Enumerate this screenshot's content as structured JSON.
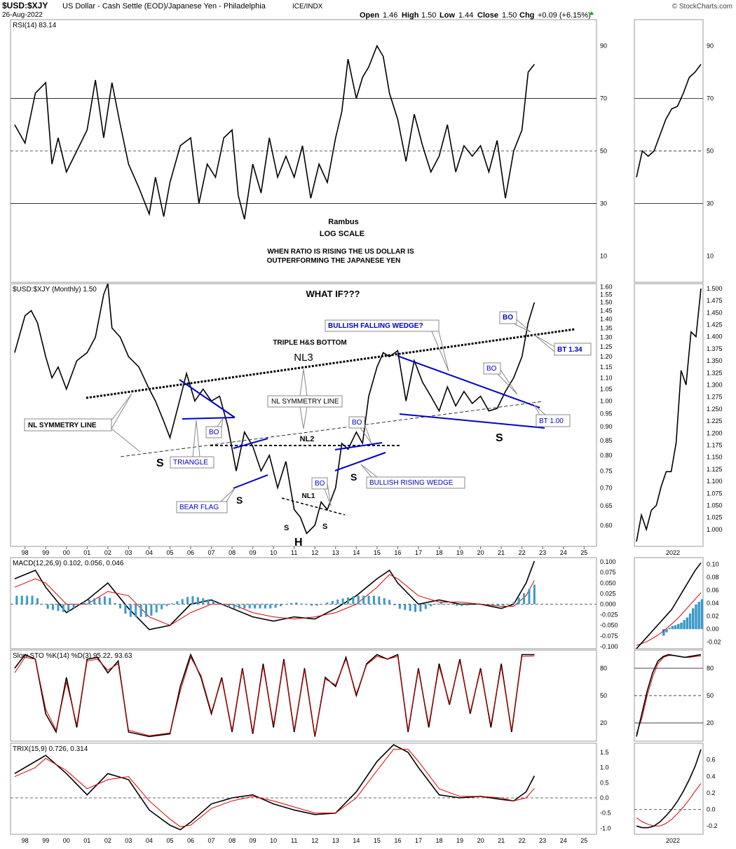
{
  "header": {
    "symbol": "$USD:$XJY",
    "description": "US Dollar - Cash Settle (EOD)/Japanese Yen - Philadelphia",
    "exchange": "ICE/INDX",
    "date": "26-Aug-2022",
    "watermark": "© StockCharts.com",
    "ohlc": {
      "open_label": "Open",
      "open": "1.46",
      "high_label": "High",
      "high": "1.50",
      "low_label": "Low",
      "low": "1.44",
      "close_label": "Close",
      "close": "1.50",
      "chg_label": "Chg",
      "chg": "+0.09 (+6.15%)"
    }
  },
  "colors": {
    "price_line": "#000000",
    "annotation_blue": "#0000cc",
    "rsi_fill_over": "#5a7a52",
    "rsi_fill_under": "#8a5050",
    "macd_signal": "#dd0000",
    "histogram": "#3a9ac8",
    "grid": "#bbbbbb"
  },
  "annotations": {
    "rambus": "Rambus",
    "log_scale": "LOG SCALE",
    "ratio_note_1": "WHEN RATIO IS RISING THE US DOLLAR IS",
    "ratio_note_2": "OUTPERFORMING THE JAPANESE YEN",
    "what_if": "WHAT IF???",
    "triple_hs": "TRIPLE H&S BOTTOM",
    "nl3": "NL3",
    "nl2": "NL2",
    "nl1": "NL1",
    "nl_symmetry_left": "NL SYMMETRY LINE",
    "nl_symmetry_mid": "NL SYMMETRY LINE",
    "bullish_falling_wedge": "BULLISH FALLING WEDGE?",
    "bullish_rising_wedge": "BULLISH RISING WEDGE",
    "triangle": "TRIANGLE",
    "bear_flag": "BEAR FLAG",
    "bo_1": "BO",
    "bo_2": "BO",
    "bo_3": "BO",
    "bo_4": "BO",
    "bo_5": "BO",
    "bt_134": "BT 1.34",
    "bt_100": "BT 1.00",
    "s_1": "S",
    "s_2": "S",
    "s_3": "S",
    "s_4": "S",
    "s_small_1": "S",
    "s_small_2": "S",
    "h": "H"
  },
  "chart_data": [
    {
      "type": "line",
      "panel": "rsi",
      "title": "RSI(14) 83.14",
      "ylim": [
        0,
        100
      ],
      "yticks": [
        10,
        30,
        50,
        70,
        90
      ],
      "reference_lines": [
        30,
        50,
        70
      ],
      "series": [
        {
          "name": "RSI(14)",
          "x": [
            1997.5,
            1998,
            1998.5,
            1999,
            1999.3,
            1999.6,
            2000,
            2000.5,
            2001,
            2001.4,
            2001.8,
            2002.2,
            2002.6,
            2003,
            2003.5,
            2004,
            2004.3,
            2004.7,
            2005,
            2005.5,
            2006,
            2006.4,
            2006.8,
            2007.2,
            2007.6,
            2008,
            2008.3,
            2008.6,
            2009,
            2009.4,
            2009.8,
            2010.2,
            2010.6,
            2011,
            2011.4,
            2011.8,
            2012.2,
            2012.6,
            2013,
            2013.3,
            2013.6,
            2014,
            2014.3,
            2014.6,
            2015,
            2015.3,
            2015.6,
            2016,
            2016.4,
            2016.8,
            2017.2,
            2017.6,
            2018,
            2018.4,
            2018.8,
            2019.2,
            2019.6,
            2020,
            2020.4,
            2020.8,
            2021.2,
            2021.6,
            2022,
            2022.3,
            2022.6
          ],
          "values": [
            60,
            53,
            72,
            76,
            45,
            55,
            42,
            50,
            58,
            77,
            55,
            76,
            60,
            45,
            36,
            26,
            40,
            25,
            38,
            52,
            55,
            30,
            45,
            40,
            55,
            58,
            33,
            24,
            45,
            34,
            55,
            40,
            48,
            40,
            52,
            32,
            45,
            38,
            55,
            65,
            85,
            70,
            78,
            82,
            90,
            86,
            72,
            62,
            46,
            64,
            52,
            42,
            48,
            60,
            42,
            52,
            48,
            52,
            42,
            54,
            32,
            50,
            58,
            80,
            83
          ]
        }
      ]
    },
    {
      "type": "line",
      "panel": "price",
      "title": "$USD:$XJY (Monthly) 1.50",
      "scale": "log",
      "ylim": [
        0.55,
        1.62
      ],
      "yticks": [
        0.6,
        0.65,
        0.7,
        0.75,
        0.8,
        0.85,
        0.9,
        0.95,
        1.0,
        1.05,
        1.1,
        1.15,
        1.2,
        1.25,
        1.3,
        1.35,
        1.4,
        1.45,
        1.5,
        1.55,
        1.6
      ],
      "xticks": [
        "98",
        "99",
        "00",
        "01",
        "02",
        "03",
        "04",
        "05",
        "06",
        "07",
        "08",
        "09",
        "10",
        "11",
        "12",
        "13",
        "14",
        "15",
        "16",
        "17",
        "18",
        "19",
        "20",
        "21",
        "22",
        "23",
        "24",
        "25"
      ],
      "series": [
        {
          "name": "$USD:$XJY",
          "x": [
            1997.5,
            1998,
            1998.3,
            1998.6,
            1999,
            1999.3,
            1999.6,
            2000,
            2000.5,
            2001,
            2001.4,
            2001.8,
            2002,
            2002.2,
            2002.6,
            2003,
            2003.5,
            2004,
            2004.3,
            2004.7,
            2005,
            2005.4,
            2005.8,
            2006.2,
            2006.6,
            2007,
            2007.4,
            2007.8,
            2008.2,
            2008.6,
            2009,
            2009.4,
            2009.8,
            2010.2,
            2010.6,
            2011,
            2011.3,
            2011.6,
            2012,
            2012.3,
            2012.6,
            2013,
            2013.3,
            2013.6,
            2014,
            2014.3,
            2014.6,
            2015,
            2015.3,
            2015.6,
            2016,
            2016.4,
            2016.8,
            2017.2,
            2017.6,
            2018,
            2018.4,
            2018.8,
            2019.2,
            2019.6,
            2020,
            2020.4,
            2020.8,
            2021.2,
            2021.6,
            2022,
            2022.3,
            2022.6
          ],
          "values": [
            1.22,
            1.42,
            1.45,
            1.38,
            1.2,
            1.1,
            1.15,
            1.05,
            1.18,
            1.22,
            1.3,
            1.55,
            1.62,
            1.35,
            1.3,
            1.2,
            1.15,
            1.05,
            1.0,
            0.92,
            0.86,
            0.98,
            1.12,
            1.0,
            1.05,
            1.0,
            1.02,
            0.9,
            0.75,
            0.88,
            0.83,
            0.75,
            0.8,
            0.7,
            0.78,
            0.64,
            0.62,
            0.58,
            0.6,
            0.66,
            0.64,
            0.7,
            0.84,
            0.82,
            0.88,
            0.84,
            1.02,
            1.15,
            1.22,
            1.2,
            1.23,
            1.0,
            1.18,
            1.08,
            1.02,
            0.96,
            1.06,
            0.98,
            1.04,
            0.99,
            1.02,
            0.96,
            0.97,
            1.04,
            1.1,
            1.2,
            1.38,
            1.5
          ]
        }
      ]
    },
    {
      "type": "line",
      "panel": "macd",
      "title": "MACD(12,26,9) 0.102, 0.056, 0.046",
      "ylim": [
        -0.105,
        0.11
      ],
      "yticks": [
        -0.1,
        -0.075,
        -0.05,
        -0.025,
        0.0,
        0.025,
        0.05,
        0.075,
        0.1
      ],
      "series": [
        {
          "name": "MACD",
          "x": [
            1997.5,
            1998.5,
            1999,
            2000,
            2001,
            2002,
            2003,
            2004,
            2005,
            2006,
            2007,
            2008,
            2009,
            2010,
            2011,
            2012,
            2013,
            2014,
            2015,
            2015.6,
            2016,
            2017,
            2018,
            2019,
            2020,
            2021,
            2021.6,
            2022.2,
            2022.6
          ],
          "values": [
            0.06,
            0.08,
            0.04,
            -0.02,
            0.01,
            0.05,
            -0.01,
            -0.06,
            -0.05,
            0.0,
            0.01,
            -0.01,
            -0.03,
            -0.04,
            -0.03,
            -0.035,
            -0.01,
            0.02,
            0.06,
            0.08,
            0.05,
            0.0,
            0.01,
            0.0,
            0.0,
            -0.01,
            0.0,
            0.05,
            0.102
          ]
        },
        {
          "name": "signal",
          "x": [
            1997.5,
            1998.5,
            1999,
            2000,
            2001,
            2002,
            2003,
            2004,
            2005,
            2006,
            2007,
            2008,
            2009,
            2010,
            2011,
            2012,
            2013,
            2014,
            2015,
            2015.6,
            2016,
            2017,
            2018,
            2019,
            2020,
            2021,
            2021.6,
            2022.2,
            2022.6
          ],
          "values": [
            0.04,
            0.06,
            0.05,
            0.0,
            0.0,
            0.03,
            0.02,
            -0.03,
            -0.05,
            -0.02,
            0.0,
            0.0,
            -0.02,
            -0.03,
            -0.035,
            -0.03,
            -0.02,
            0.0,
            0.04,
            0.07,
            0.06,
            0.02,
            0.005,
            0.005,
            0.0,
            -0.005,
            -0.005,
            0.02,
            0.056
          ]
        }
      ]
    },
    {
      "type": "line",
      "panel": "slow_sto",
      "title": "Slow STO %K(14) %D(3) 95.22, 93.63",
      "ylim": [
        0,
        100
      ],
      "yticks": [
        20,
        50,
        80
      ],
      "series": [
        {
          "name": "%K",
          "x": [
            1997.5,
            1998,
            1998.5,
            1999,
            1999.5,
            2000,
            2000.5,
            2001,
            2001.5,
            2002,
            2002.5,
            2003,
            2004,
            2005,
            2005.5,
            2006,
            2006.5,
            2007,
            2007.5,
            2008,
            2008.5,
            2009,
            2009.5,
            2010,
            2010.5,
            2011,
            2011.5,
            2012,
            2012.5,
            2013,
            2013.5,
            2014,
            2014.5,
            2015,
            2015.5,
            2016,
            2016.5,
            2017,
            2017.5,
            2018,
            2018.5,
            2019,
            2019.5,
            2020,
            2020.5,
            2021,
            2021.5,
            2022,
            2022.6
          ],
          "values": [
            80,
            95,
            90,
            30,
            10,
            70,
            15,
            90,
            92,
            75,
            88,
            10,
            5,
            8,
            60,
            95,
            70,
            30,
            70,
            10,
            80,
            8,
            85,
            15,
            90,
            10,
            80,
            5,
            70,
            60,
            92,
            50,
            85,
            95,
            90,
            95,
            10,
            80,
            15,
            85,
            40,
            90,
            30,
            80,
            15,
            85,
            10,
            95,
            95
          ]
        },
        {
          "name": "%D",
          "x": [
            1997.5,
            1998,
            1998.5,
            1999,
            1999.5,
            2000,
            2000.5,
            2001,
            2001.5,
            2002,
            2002.5,
            2003,
            2004,
            2005,
            2005.5,
            2006,
            2006.5,
            2007,
            2007.5,
            2008,
            2008.5,
            2009,
            2009.5,
            2010,
            2010.5,
            2011,
            2011.5,
            2012,
            2012.5,
            2013,
            2013.5,
            2014,
            2014.5,
            2015,
            2015.5,
            2016,
            2016.5,
            2017,
            2017.5,
            2018,
            2018.5,
            2019,
            2019.5,
            2020,
            2020.5,
            2021,
            2021.5,
            2022,
            2022.6
          ],
          "values": [
            75,
            92,
            90,
            35,
            12,
            65,
            18,
            88,
            90,
            78,
            85,
            12,
            6,
            9,
            55,
            92,
            72,
            32,
            68,
            12,
            78,
            10,
            82,
            18,
            88,
            12,
            78,
            6,
            68,
            62,
            90,
            52,
            84,
            93,
            90,
            93,
            12,
            78,
            18,
            82,
            42,
            88,
            32,
            78,
            18,
            82,
            12,
            93,
            93.6
          ]
        }
      ]
    },
    {
      "type": "line",
      "panel": "trix",
      "title": "TRIX(15,9) 0.726, 0.314",
      "ylim": [
        -1.2,
        1.8
      ],
      "yticks": [
        -1.0,
        -0.5,
        0.0,
        0.5,
        1.0,
        1.5
      ],
      "series": [
        {
          "name": "TRIX",
          "x": [
            1997.5,
            1998.5,
            1999,
            2000,
            2001,
            2002,
            2003,
            2004,
            2005,
            2005.5,
            2006,
            2007,
            2008,
            2009,
            2010,
            2011,
            2012,
            2013,
            2014,
            2015,
            2015.8,
            2016.5,
            2017,
            2018,
            2019,
            2020,
            2021,
            2021.6,
            2022.2,
            2022.6
          ],
          "values": [
            0.8,
            1.2,
            1.4,
            0.8,
            0.1,
            0.8,
            0.6,
            -0.4,
            -0.9,
            -1.05,
            -0.8,
            -0.2,
            0.0,
            0.1,
            -0.2,
            -0.4,
            -0.55,
            -0.5,
            0.2,
            1.2,
            1.75,
            1.5,
            1.0,
            0.1,
            0.0,
            0.05,
            -0.05,
            -0.1,
            0.2,
            0.726
          ]
        },
        {
          "name": "signal",
          "x": [
            1997.5,
            1998.5,
            1999,
            2000,
            2001,
            2002,
            2003,
            2004,
            2005,
            2005.5,
            2006,
            2007,
            2008,
            2009,
            2010,
            2011,
            2012,
            2013,
            2014,
            2015,
            2015.8,
            2016.5,
            2017,
            2018,
            2019,
            2020,
            2021,
            2021.6,
            2022.2,
            2022.6
          ],
          "values": [
            0.7,
            1.0,
            1.3,
            0.9,
            0.3,
            0.6,
            0.7,
            -0.1,
            -0.7,
            -0.95,
            -0.9,
            -0.35,
            -0.1,
            0.05,
            -0.1,
            -0.3,
            -0.5,
            -0.5,
            0.0,
            0.9,
            1.6,
            1.6,
            1.2,
            0.3,
            0.05,
            0.05,
            0.0,
            -0.1,
            0.0,
            0.314
          ]
        }
      ]
    }
  ],
  "right_panels": {
    "year_label": "2022",
    "rsi_ticks": [
      10,
      30,
      50,
      70,
      90
    ],
    "price_ticks": [
      1.0,
      1.025,
      1.05,
      1.075,
      1.1,
      1.125,
      1.15,
      1.175,
      1.2,
      1.225,
      1.25,
      1.275,
      1.3,
      1.325,
      1.35,
      1.375,
      1.4,
      1.425,
      1.45,
      1.475,
      1.5
    ],
    "macd_ticks": [
      -0.02,
      0.0,
      0.02,
      0.04,
      0.06,
      0.08,
      0.1
    ],
    "sto_ticks": [
      20,
      50,
      80
    ],
    "trix_ticks": [
      -0.2,
      0.0,
      0.2,
      0.4,
      0.6
    ],
    "rsi_values": [
      40,
      50,
      48,
      50,
      56,
      62,
      66,
      67,
      72,
      78,
      80,
      83
    ],
    "price_values": [
      0.975,
      1.03,
      1.0,
      1.04,
      1.05,
      1.09,
      1.12,
      1.12,
      1.18,
      1.33,
      1.3,
      1.41,
      1.4,
      1.5
    ],
    "macd_values": [
      -0.03,
      -0.02,
      -0.01,
      0.0,
      0.01,
      0.02,
      0.03,
      0.045,
      0.06,
      0.075,
      0.09,
      0.102
    ],
    "macd_signal_values": [
      -0.025,
      -0.022,
      -0.018,
      -0.013,
      -0.007,
      0.0,
      0.008,
      0.016,
      0.026,
      0.036,
      0.046,
      0.056
    ],
    "macd_hist_values": [
      -0.01,
      -0.005,
      0.002,
      0.005,
      0.006,
      0.008,
      0.01,
      0.014,
      0.018,
      0.024,
      0.032,
      0.038,
      0.042,
      0.046
    ],
    "sto_k_values": [
      5,
      30,
      55,
      75,
      88,
      93,
      95,
      94,
      93,
      92,
      93,
      94,
      95
    ],
    "sto_d_values": [
      8,
      25,
      50,
      70,
      85,
      92,
      94,
      94,
      93,
      92,
      92,
      93,
      93.6
    ],
    "trix_values": [
      -0.2,
      -0.22,
      -0.22,
      -0.2,
      -0.15,
      -0.08,
      0.0,
      0.1,
      0.22,
      0.36,
      0.52,
      0.726
    ],
    "trix_signal_values": [
      -0.1,
      -0.15,
      -0.18,
      -0.2,
      -0.2,
      -0.17,
      -0.12,
      -0.05,
      0.03,
      0.12,
      0.22,
      0.314
    ]
  }
}
